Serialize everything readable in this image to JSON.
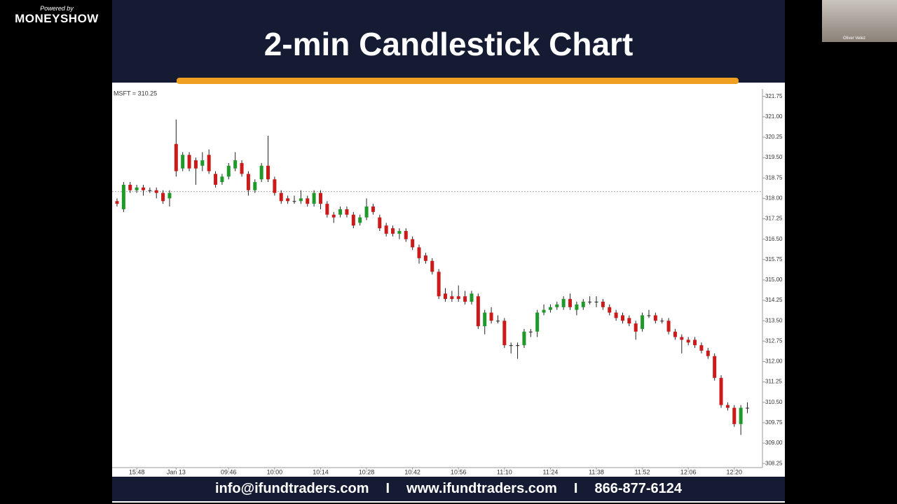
{
  "branding": {
    "powered_by": "Powered by",
    "name": "MONEYSHOW"
  },
  "slide": {
    "title": "2-min Candlestick Chart",
    "footer": [
      "info@ifundtraders.com",
      "I",
      "www.ifundtraders.com",
      "I",
      "866-877-6124"
    ]
  },
  "webcam": {
    "name": "Oliver Velez"
  },
  "chart_data": {
    "type": "candlestick",
    "symbol_label": "MSFT = 310.25",
    "categories": [
      null,
      null,
      null,
      "15:48",
      null,
      null,
      null,
      null,
      null,
      "Jan 13",
      null,
      null,
      null,
      null,
      null,
      null,
      null,
      "09:46",
      null,
      null,
      null,
      null,
      null,
      null,
      "10:00",
      null,
      null,
      null,
      null,
      null,
      null,
      "10:14",
      null,
      null,
      null,
      null,
      null,
      null,
      "10:28",
      null,
      null,
      null,
      null,
      null,
      null,
      "10:42",
      null,
      null,
      null,
      null,
      null,
      null,
      "10:56",
      null,
      null,
      null,
      null,
      null,
      null,
      "11:10",
      null,
      null,
      null,
      null,
      null,
      null,
      "11:24",
      null,
      null,
      null,
      null,
      null,
      null,
      "11:38",
      null,
      null,
      null,
      null,
      null,
      null,
      "11:52",
      null,
      null,
      null,
      null,
      null,
      null,
      "12:06",
      null,
      null,
      null,
      null,
      null,
      null,
      "12:20",
      null,
      null
    ],
    "ohlc": [
      [
        317.9,
        318.0,
        317.7,
        317.8
      ],
      [
        317.6,
        318.6,
        317.5,
        318.5
      ],
      [
        318.5,
        318.6,
        318.2,
        318.3
      ],
      [
        318.3,
        318.5,
        318.2,
        318.4
      ],
      [
        318.4,
        318.5,
        318.1,
        318.3
      ],
      [
        318.3,
        318.4,
        318.2,
        318.3
      ],
      [
        318.3,
        318.4,
        318.0,
        318.2
      ],
      [
        318.2,
        318.3,
        317.8,
        317.9
      ],
      [
        318.0,
        318.3,
        317.7,
        318.2
      ],
      [
        320.0,
        320.9,
        318.8,
        319.0
      ],
      [
        319.1,
        319.7,
        319.0,
        319.6
      ],
      [
        319.6,
        319.7,
        319.0,
        319.1
      ],
      [
        319.4,
        319.5,
        318.5,
        319.1
      ],
      [
        319.2,
        319.7,
        319.0,
        319.4
      ],
      [
        319.6,
        319.8,
        318.9,
        319.0
      ],
      [
        318.9,
        319.0,
        318.4,
        318.5
      ],
      [
        318.6,
        318.9,
        318.5,
        318.8
      ],
      [
        318.8,
        319.3,
        318.7,
        319.2
      ],
      [
        319.1,
        319.7,
        319.0,
        319.4
      ],
      [
        319.3,
        319.4,
        318.8,
        318.9
      ],
      [
        318.9,
        319.0,
        318.1,
        318.3
      ],
      [
        318.3,
        318.7,
        318.2,
        318.6
      ],
      [
        318.7,
        319.3,
        318.6,
        319.2
      ],
      [
        319.2,
        320.3,
        318.6,
        318.7
      ],
      [
        318.7,
        318.8,
        318.1,
        318.2
      ],
      [
        318.2,
        318.3,
        317.8,
        317.9
      ],
      [
        318.0,
        318.1,
        317.8,
        317.9
      ],
      [
        317.9,
        318.1,
        317.8,
        317.9
      ],
      [
        317.9,
        318.3,
        317.8,
        318.0
      ],
      [
        318.0,
        318.1,
        317.7,
        317.8
      ],
      [
        317.8,
        318.3,
        317.7,
        318.2
      ],
      [
        318.2,
        318.3,
        317.6,
        317.8
      ],
      [
        317.8,
        317.9,
        317.3,
        317.4
      ],
      [
        317.4,
        317.5,
        317.1,
        317.3
      ],
      [
        317.4,
        317.7,
        317.3,
        317.6
      ],
      [
        317.6,
        317.7,
        317.3,
        317.4
      ],
      [
        317.4,
        317.5,
        316.9,
        317.0
      ],
      [
        317.1,
        317.4,
        317.0,
        317.3
      ],
      [
        317.3,
        318.0,
        317.2,
        317.7
      ],
      [
        317.7,
        317.8,
        317.4,
        317.5
      ],
      [
        317.3,
        317.4,
        316.8,
        316.9
      ],
      [
        317.0,
        317.1,
        316.6,
        316.7
      ],
      [
        316.9,
        317.0,
        316.6,
        316.7
      ],
      [
        316.7,
        316.9,
        316.5,
        316.8
      ],
      [
        316.8,
        316.9,
        316.4,
        316.5
      ],
      [
        316.5,
        316.6,
        316.1,
        316.2
      ],
      [
        316.2,
        316.3,
        315.6,
        315.8
      ],
      [
        315.9,
        316.0,
        315.6,
        315.7
      ],
      [
        315.7,
        315.8,
        315.2,
        315.3
      ],
      [
        315.3,
        315.4,
        314.3,
        314.4
      ],
      [
        314.5,
        314.7,
        314.2,
        314.3
      ],
      [
        314.4,
        314.6,
        314.2,
        314.3
      ],
      [
        314.4,
        314.8,
        314.2,
        314.3
      ],
      [
        314.4,
        314.6,
        314.1,
        314.2
      ],
      [
        314.2,
        314.6,
        314.1,
        314.5
      ],
      [
        314.4,
        314.5,
        313.2,
        313.3
      ],
      [
        313.3,
        313.9,
        313.0,
        313.8
      ],
      [
        313.8,
        314.0,
        313.4,
        313.5
      ],
      [
        313.5,
        313.7,
        313.4,
        313.5
      ],
      [
        313.5,
        313.6,
        312.5,
        312.6
      ],
      [
        312.6,
        312.7,
        312.3,
        312.6
      ],
      [
        312.6,
        312.7,
        312.1,
        312.6
      ],
      [
        312.6,
        313.2,
        312.5,
        313.1
      ],
      [
        313.1,
        313.2,
        312.9,
        313.1
      ],
      [
        313.1,
        313.9,
        312.9,
        313.8
      ],
      [
        313.8,
        314.1,
        313.7,
        313.9
      ],
      [
        313.9,
        314.1,
        313.8,
        314.0
      ],
      [
        314.0,
        314.2,
        313.9,
        314.1
      ],
      [
        314.0,
        314.4,
        313.9,
        314.3
      ],
      [
        314.3,
        314.5,
        313.9,
        314.0
      ],
      [
        313.9,
        314.2,
        313.7,
        314.1
      ],
      [
        314.0,
        314.3,
        313.9,
        314.2
      ],
      [
        314.2,
        314.4,
        314.1,
        314.2
      ],
      [
        314.2,
        314.4,
        314.0,
        314.2
      ],
      [
        314.2,
        314.3,
        313.9,
        314.0
      ],
      [
        314.0,
        314.1,
        313.7,
        313.8
      ],
      [
        313.8,
        313.9,
        313.5,
        313.6
      ],
      [
        313.7,
        313.8,
        313.4,
        313.5
      ],
      [
        313.6,
        313.7,
        313.3,
        313.4
      ],
      [
        313.4,
        313.5,
        312.8,
        313.1
      ],
      [
        313.2,
        313.8,
        313.1,
        313.7
      ],
      [
        313.7,
        313.9,
        313.6,
        313.7
      ],
      [
        313.7,
        313.8,
        313.4,
        313.5
      ],
      [
        313.5,
        313.6,
        313.4,
        313.5
      ],
      [
        313.5,
        313.6,
        313.0,
        313.1
      ],
      [
        313.1,
        313.2,
        312.8,
        312.9
      ],
      [
        312.9,
        313.0,
        312.3,
        312.8
      ],
      [
        312.8,
        312.9,
        312.6,
        312.7
      ],
      [
        312.8,
        312.9,
        312.5,
        312.6
      ],
      [
        312.6,
        312.7,
        312.3,
        312.4
      ],
      [
        312.4,
        312.5,
        312.1,
        312.2
      ],
      [
        312.2,
        312.3,
        311.3,
        311.4
      ],
      [
        311.4,
        311.5,
        310.3,
        310.4
      ],
      [
        310.4,
        310.5,
        310.2,
        310.3
      ],
      [
        310.3,
        310.4,
        309.6,
        309.7
      ],
      [
        309.7,
        310.4,
        309.3,
        310.3
      ],
      [
        310.3,
        310.5,
        310.1,
        310.3
      ]
    ],
    "up_color": "#1f9a2a",
    "down_color": "#cc1a1a",
    "reference_line": 318.25,
    "ylim": [
      308.1,
      322.0
    ],
    "yticks": [
      321.75,
      {
        "value": 321,
        "label": "321.00"
      },
      320.25,
      {
        "value": 319.5,
        "label": "319.50"
      },
      318.75,
      {
        "value": 318,
        "label": "318.00"
      },
      317.25,
      {
        "value": 316.5,
        "label": "316.50"
      },
      315.75,
      {
        "value": 315,
        "label": "315.00"
      },
      314.25,
      {
        "value": 313.5,
        "label": "313.50"
      },
      312.75,
      {
        "value": 312,
        "label": "312.00"
      },
      311.25,
      {
        "value": 310.5,
        "label": "310.50"
      },
      309.75,
      {
        "value": 309,
        "label": "309.00"
      },
      308.25
    ]
  }
}
